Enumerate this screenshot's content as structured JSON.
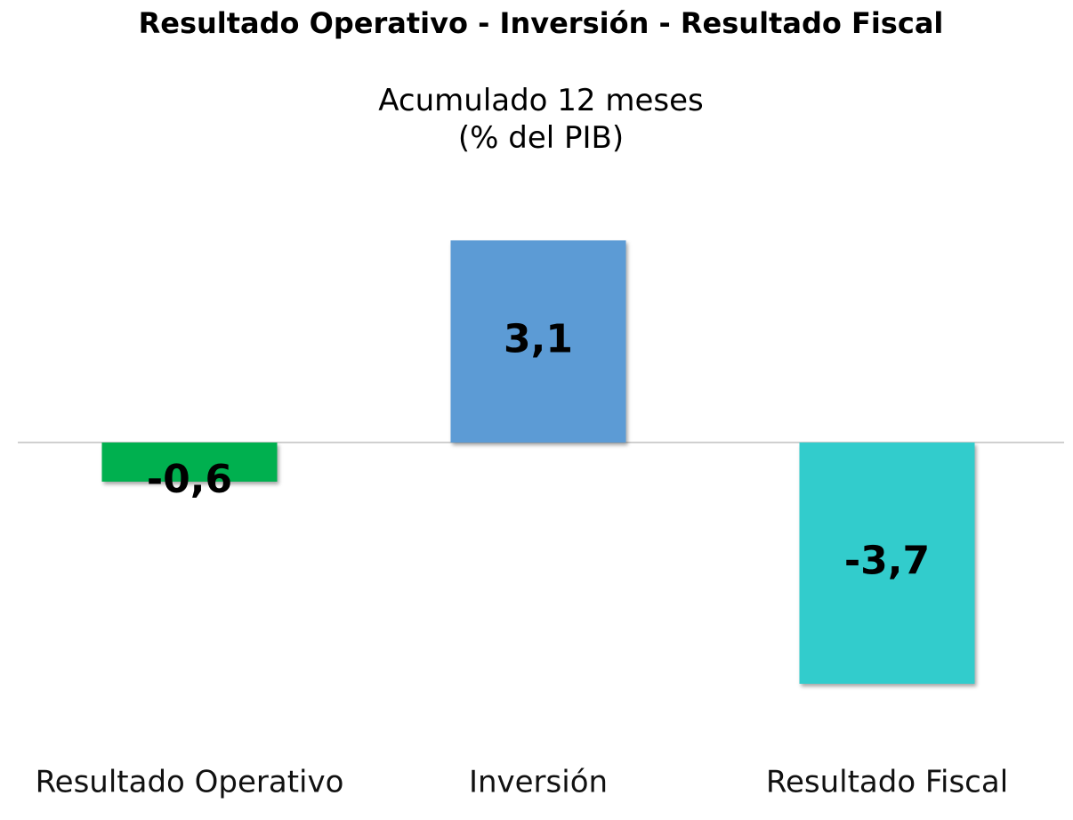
{
  "chart_data": {
    "type": "bar",
    "title": "Resultado Operativo - Inversión - Resultado Fiscal",
    "subtitle": "Acumulado 12 meses\n(% del PIB)",
    "categories": [
      "Resultado Operativo",
      "Inversión",
      "Resultado Fiscal"
    ],
    "values": [
      -0.6,
      3.1,
      -3.7
    ],
    "value_labels": [
      "-0,6",
      "3,1",
      "-3,7"
    ],
    "colors": [
      "#00b050",
      "#5b9bd5",
      "#33cccc"
    ]
  }
}
